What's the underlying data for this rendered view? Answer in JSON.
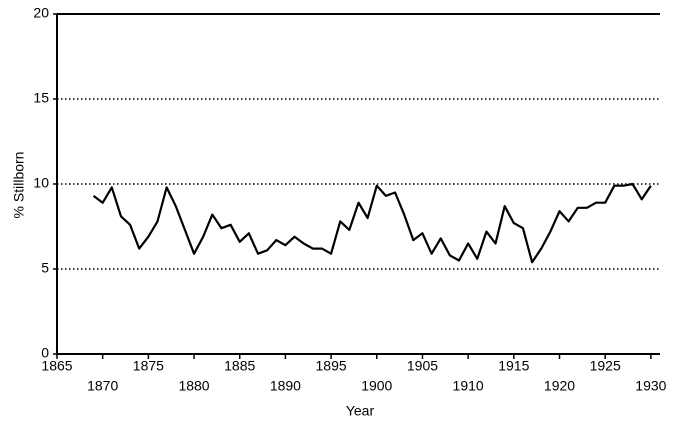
{
  "chart_data": {
    "type": "line",
    "x_label": "Year",
    "y_label": "% Stillborn",
    "x": [
      1869,
      1870,
      1871,
      1872,
      1873,
      1874,
      1875,
      1876,
      1877,
      1878,
      1879,
      1880,
      1881,
      1882,
      1883,
      1884,
      1885,
      1886,
      1887,
      1888,
      1889,
      1890,
      1891,
      1892,
      1893,
      1894,
      1895,
      1896,
      1897,
      1898,
      1899,
      1900,
      1901,
      1902,
      1903,
      1904,
      1905,
      1906,
      1907,
      1908,
      1909,
      1910,
      1911,
      1912,
      1913,
      1914,
      1915,
      1916,
      1917,
      1918,
      1919,
      1920,
      1921,
      1922,
      1923,
      1924,
      1925,
      1926,
      1927,
      1928,
      1929,
      1930
    ],
    "series": [
      {
        "color": "#000000",
        "values": [
          9.3,
          8.9,
          9.8,
          8.1,
          7.6,
          6.2,
          6.9,
          7.8,
          9.8,
          8.7,
          7.3,
          5.9,
          6.9,
          8.2,
          7.4,
          7.6,
          6.6,
          7.1,
          5.9,
          6.1,
          6.7,
          6.4,
          6.9,
          6.5,
          6.2,
          6.2,
          5.9,
          7.8,
          7.3,
          8.9,
          8.0,
          9.9,
          9.3,
          9.5,
          8.2,
          6.7,
          7.1,
          5.9,
          6.8,
          5.8,
          5.5,
          6.5,
          5.6,
          7.2,
          6.5,
          8.7,
          7.7,
          7.4,
          5.4,
          6.2,
          7.2,
          8.4,
          7.8,
          8.6,
          8.6,
          8.9,
          8.9,
          9.9,
          9.9,
          10.0,
          9.1,
          9.9
        ]
      }
    ],
    "xlim": [
      1865,
      1931
    ],
    "xticks": [
      1865,
      1870,
      1875,
      1880,
      1885,
      1890,
      1895,
      1900,
      1905,
      1910,
      1915,
      1920,
      1925,
      1930
    ],
    "ylim": [
      0,
      20
    ],
    "yticks": [
      0,
      5,
      10,
      15,
      20
    ],
    "grid": true
  }
}
